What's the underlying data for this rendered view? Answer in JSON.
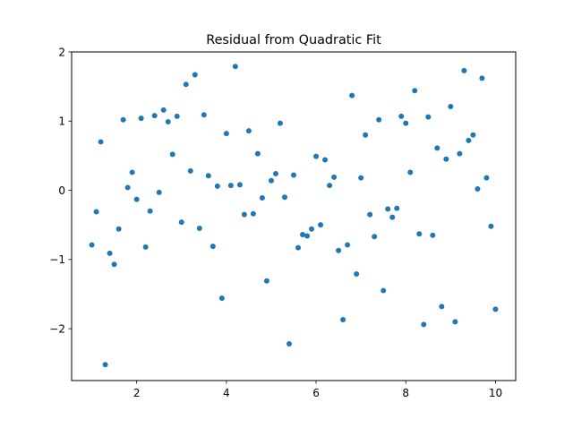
{
  "chart_data": {
    "type": "scatter",
    "title": "Residual from Quadratic Fit",
    "xlabel": "",
    "ylabel": "",
    "xlim": [
      0.55,
      10.45
    ],
    "ylim": [
      -2.75,
      2.0
    ],
    "x_ticks": [
      2,
      4,
      6,
      8,
      10
    ],
    "y_ticks": [
      -2,
      -1,
      0,
      1,
      2
    ],
    "x_tick_labels": [
      "2",
      "4",
      "6",
      "8",
      "10"
    ],
    "y_tick_labels": [
      "−2",
      "−1",
      "0",
      "1",
      "2"
    ],
    "grid": false,
    "marker_color": "#1f77b4",
    "points": [
      [
        1.0,
        -0.79
      ],
      [
        1.1,
        -0.31
      ],
      [
        1.2,
        0.7
      ],
      [
        1.3,
        -2.52
      ],
      [
        1.4,
        -0.91
      ],
      [
        1.5,
        -1.07
      ],
      [
        1.6,
        -0.56
      ],
      [
        1.7,
        1.02
      ],
      [
        1.8,
        0.04
      ],
      [
        1.9,
        0.26
      ],
      [
        2.0,
        -0.13
      ],
      [
        2.1,
        1.04
      ],
      [
        2.2,
        -0.82
      ],
      [
        2.3,
        -0.3
      ],
      [
        2.4,
        1.08
      ],
      [
        2.5,
        -0.03
      ],
      [
        2.6,
        1.16
      ],
      [
        2.7,
        0.99
      ],
      [
        2.8,
        0.52
      ],
      [
        2.9,
        1.07
      ],
      [
        3.0,
        -0.46
      ],
      [
        3.1,
        1.53
      ],
      [
        3.2,
        0.28
      ],
      [
        3.3,
        1.67
      ],
      [
        3.4,
        -0.55
      ],
      [
        3.5,
        1.09
      ],
      [
        3.6,
        0.21
      ],
      [
        3.7,
        -0.81
      ],
      [
        3.8,
        0.06
      ],
      [
        3.9,
        -1.56
      ],
      [
        4.0,
        0.82
      ],
      [
        4.1,
        0.07
      ],
      [
        4.2,
        1.79
      ],
      [
        4.3,
        0.08
      ],
      [
        4.4,
        -0.35
      ],
      [
        4.5,
        0.86
      ],
      [
        4.6,
        -0.34
      ],
      [
        4.7,
        0.53
      ],
      [
        4.8,
        -0.11
      ],
      [
        4.9,
        -1.31
      ],
      [
        5.0,
        0.14
      ],
      [
        5.1,
        0.24
      ],
      [
        5.2,
        0.97
      ],
      [
        5.3,
        -0.1
      ],
      [
        5.4,
        -2.22
      ],
      [
        5.5,
        0.22
      ],
      [
        5.6,
        -0.83
      ],
      [
        5.7,
        -0.64
      ],
      [
        5.8,
        -0.66
      ],
      [
        5.9,
        -0.56
      ],
      [
        6.0,
        0.49
      ],
      [
        6.1,
        -0.5
      ],
      [
        6.2,
        0.44
      ],
      [
        6.3,
        0.07
      ],
      [
        6.4,
        0.19
      ],
      [
        6.5,
        -0.87
      ],
      [
        6.6,
        -1.87
      ],
      [
        6.7,
        -0.79
      ],
      [
        6.8,
        1.37
      ],
      [
        6.9,
        -1.21
      ],
      [
        7.0,
        0.18
      ],
      [
        7.1,
        0.8
      ],
      [
        7.2,
        -0.35
      ],
      [
        7.3,
        -0.67
      ],
      [
        7.4,
        1.02
      ],
      [
        7.5,
        -1.45
      ],
      [
        7.6,
        -0.27
      ],
      [
        7.7,
        -0.39
      ],
      [
        7.8,
        -0.26
      ],
      [
        7.9,
        1.07
      ],
      [
        8.0,
        0.97
      ],
      [
        8.1,
        0.26
      ],
      [
        8.2,
        1.44
      ],
      [
        8.3,
        -0.63
      ],
      [
        8.4,
        -1.94
      ],
      [
        8.5,
        1.06
      ],
      [
        8.6,
        -0.65
      ],
      [
        8.7,
        0.61
      ],
      [
        8.8,
        -1.68
      ],
      [
        8.9,
        0.45
      ],
      [
        9.0,
        1.21
      ],
      [
        9.1,
        -1.9
      ],
      [
        9.2,
        0.53
      ],
      [
        9.3,
        1.73
      ],
      [
        9.4,
        0.72
      ],
      [
        9.5,
        0.8
      ],
      [
        9.6,
        0.02
      ],
      [
        9.7,
        1.62
      ],
      [
        9.8,
        0.18
      ],
      [
        9.9,
        -0.52
      ],
      [
        10.0,
        -1.72
      ]
    ]
  }
}
